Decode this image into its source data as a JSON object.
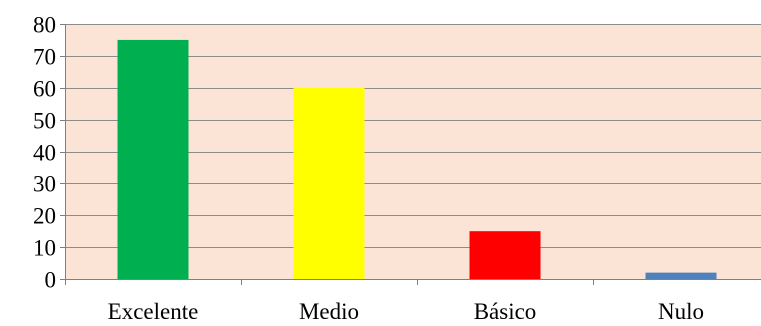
{
  "chart_data": {
    "type": "bar",
    "title": "",
    "xlabel": "",
    "ylabel": "",
    "categories": [
      "Excelente",
      "Medio",
      "Básico",
      "Nulo"
    ],
    "values": [
      75,
      60,
      15,
      2
    ],
    "bar_colors": [
      "#00b050",
      "#ffff00",
      "#ff0000",
      "#4f81bd"
    ],
    "ylim": [
      0,
      80
    ],
    "y_ticks": [
      0,
      10,
      20,
      30,
      40,
      50,
      60,
      70,
      80
    ],
    "y_tick_labels": [
      "0",
      "10",
      "20",
      "30",
      "40",
      "50",
      "60",
      "70",
      "80"
    ],
    "grid": true,
    "plot_background": "#fbe4d5",
    "gridline_color": "#8c8c8c",
    "legend": "none"
  }
}
